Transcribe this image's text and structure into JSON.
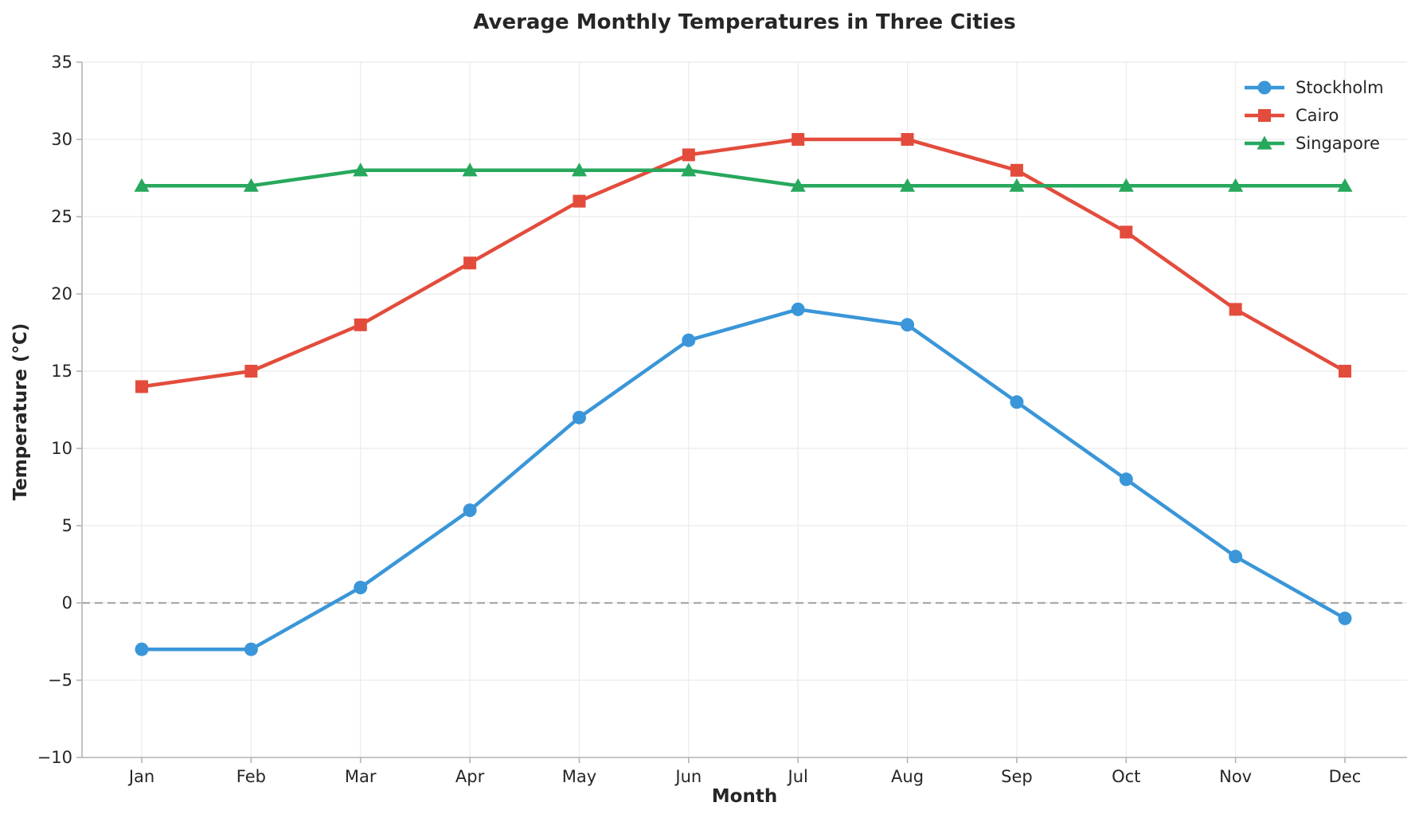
{
  "chart_data": {
    "type": "line",
    "title": "Average Monthly Temperatures in Three Cities",
    "xlabel": "Month",
    "ylabel": "Temperature (°C)",
    "categories": [
      "Jan",
      "Feb",
      "Mar",
      "Apr",
      "May",
      "Jun",
      "Jul",
      "Aug",
      "Sep",
      "Oct",
      "Nov",
      "Dec"
    ],
    "ylim": [
      -10,
      35
    ],
    "yticks": [
      -10,
      -5,
      0,
      5,
      10,
      15,
      20,
      25,
      30,
      35
    ],
    "ytick_labels": [
      "−10",
      "−5",
      "0",
      "5",
      "10",
      "15",
      "20",
      "25",
      "30",
      "35"
    ],
    "grid": true,
    "reference_line": {
      "y": 0,
      "style": "dashed",
      "color": "#aaaaaa"
    },
    "legend_position": "top-right",
    "series": [
      {
        "name": "Stockholm",
        "color": "#3a96d8",
        "marker": "circle",
        "values": [
          -3,
          -3,
          1,
          6,
          12,
          17,
          19,
          18,
          13,
          8,
          3,
          -1
        ]
      },
      {
        "name": "Cairo",
        "color": "#e34c3c",
        "marker": "square",
        "values": [
          14,
          15,
          18,
          22,
          26,
          29,
          30,
          30,
          28,
          24,
          19,
          15
        ]
      },
      {
        "name": "Singapore",
        "color": "#27a85d",
        "marker": "triangle",
        "values": [
          27,
          27,
          28,
          28,
          28,
          28,
          27,
          27,
          27,
          27,
          27,
          27
        ]
      }
    ]
  }
}
